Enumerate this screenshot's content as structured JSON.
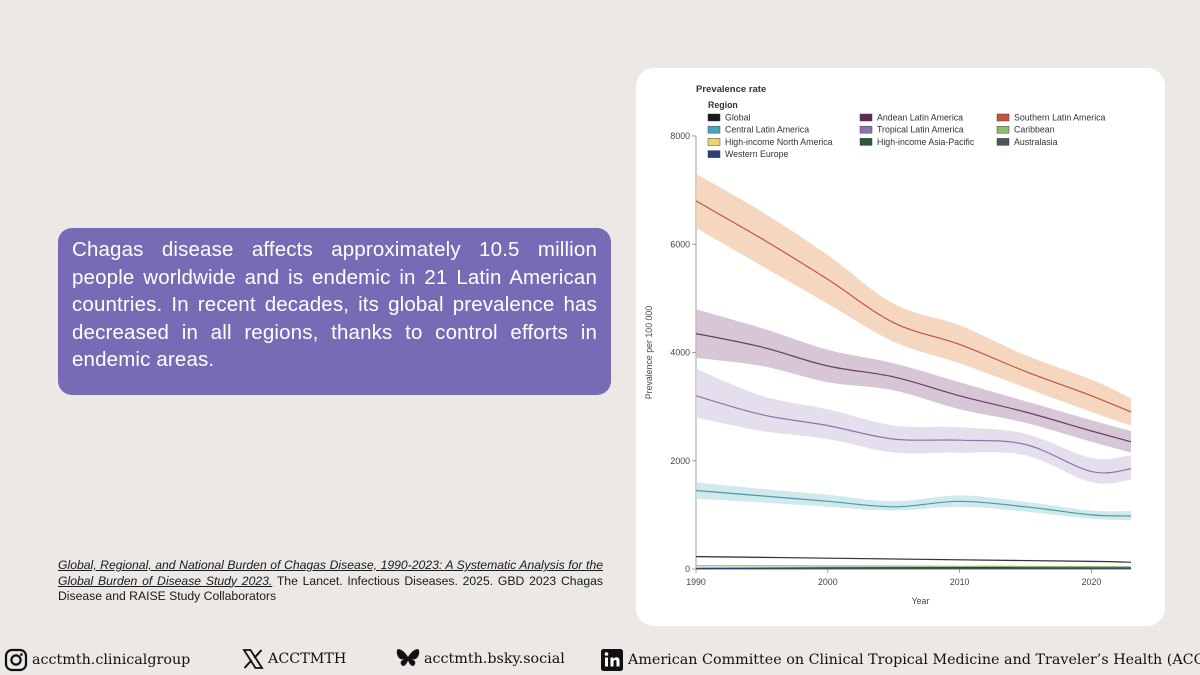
{
  "info": {
    "text": "Chagas disease affects approximately 10.5 million people worldwide and is endemic in 21 Latin American countries. In recent decades, its global prevalence has decreased in all regions, thanks to control efforts in endemic areas."
  },
  "citation": {
    "title": "Global, Regional, and National Burden of Chagas Disease, 1990-2023: A Systematic Analysis for the Global Burden of Disease Study 2023.",
    "rest": " The Lancet. Infectious Diseases. 2025. GBD 2023 Chagas Disease and RAISE Study Collaborators"
  },
  "footer": {
    "instagram": "acctmth.clinicalgroup",
    "x": "ACCTMTH",
    "bluesky": "acctmth.bsky.social",
    "linkedin": "American Committee  on Clinical Tropical Medicine and Traveler’s Health (ACCTMTH)"
  },
  "chart_data": {
    "type": "line",
    "title": "Prevalence rate",
    "legend_title": "Region",
    "xlabel": "Year",
    "ylabel": "Prevalence per 100 000",
    "xlim": [
      1990,
      2023
    ],
    "ylim": [
      0,
      8000
    ],
    "x_ticks": [
      1990,
      2000,
      2010,
      2020
    ],
    "y_ticks": [
      0,
      2000,
      4000,
      6000,
      8000
    ],
    "legend": [
      {
        "name": "Global",
        "color": "#1a1a1a"
      },
      {
        "name": "Andean Latin America",
        "color": "#5e2a5a"
      },
      {
        "name": "Southern Latin America",
        "color": "#c2573a"
      },
      {
        "name": "Central Latin America",
        "color": "#4aa6b6"
      },
      {
        "name": "Tropical Latin America",
        "color": "#8a74ab"
      },
      {
        "name": "Caribbean",
        "color": "#8cbd6c"
      },
      {
        "name": "High-income North America",
        "color": "#e8d76a"
      },
      {
        "name": "High-income Asia-Pacific",
        "color": "#2a5a3e"
      },
      {
        "name": "Australasia",
        "color": "#4a5a5c"
      },
      {
        "name": "Western Europe",
        "color": "#2c3f7c"
      }
    ],
    "series": [
      {
        "name": "Southern Latin America",
        "line": "#c2573a",
        "band": "#f2c9aa",
        "x": [
          1990,
          1995,
          2000,
          2005,
          2010,
          2015,
          2020,
          2023
        ],
        "y": [
          6800,
          6100,
          5350,
          4550,
          4150,
          3650,
          3200,
          2900
        ],
        "lower": [
          6300,
          5600,
          4900,
          4200,
          3800,
          3350,
          2900,
          2650
        ],
        "upper": [
          7300,
          6600,
          5800,
          4900,
          4500,
          3950,
          3500,
          3150
        ]
      },
      {
        "name": "Andean Latin America",
        "line": "#6b3d68",
        "band": "#c8b3c8",
        "x": [
          1990,
          1995,
          2000,
          2005,
          2010,
          2015,
          2020,
          2023
        ],
        "y": [
          4350,
          4100,
          3750,
          3550,
          3200,
          2900,
          2550,
          2350
        ],
        "lower": [
          3900,
          3750,
          3450,
          3300,
          2950,
          2700,
          2350,
          2150
        ],
        "upper": [
          4800,
          4450,
          4050,
          3800,
          3450,
          3100,
          2750,
          2550
        ]
      },
      {
        "name": "Tropical Latin America",
        "line": "#8a78ad",
        "band": "#dcd3e6",
        "x": [
          1990,
          1995,
          2000,
          2005,
          2010,
          2015,
          2020,
          2023
        ],
        "y": [
          3200,
          2850,
          2650,
          2400,
          2380,
          2300,
          1800,
          1850
        ],
        "lower": [
          2800,
          2550,
          2400,
          2150,
          2150,
          2100,
          1600,
          1650
        ],
        "upper": [
          3700,
          3200,
          2950,
          2650,
          2620,
          2500,
          2050,
          2100
        ]
      },
      {
        "name": "Central Latin America",
        "line": "#4a9aa6",
        "band": "#bfe2e6",
        "x": [
          1990,
          1995,
          2000,
          2005,
          2010,
          2015,
          2020,
          2023
        ],
        "y": [
          1450,
          1350,
          1250,
          1150,
          1250,
          1150,
          1000,
          980
        ],
        "lower": [
          1300,
          1230,
          1150,
          1080,
          1150,
          1060,
          930,
          900
        ],
        "upper": [
          1600,
          1480,
          1370,
          1250,
          1360,
          1240,
          1080,
          1070
        ]
      },
      {
        "name": "Global",
        "line": "#333333",
        "band": "#dddddd",
        "x": [
          1990,
          2000,
          2010,
          2020,
          2023
        ],
        "y": [
          230,
          200,
          170,
          140,
          125
        ],
        "lower": [
          210,
          185,
          155,
          125,
          115
        ],
        "upper": [
          250,
          215,
          185,
          155,
          140
        ]
      },
      {
        "name": "Caribbean",
        "line": "#8cbd6c",
        "band": "#d7ebc9",
        "x": [
          1990,
          2000,
          2010,
          2020,
          2023
        ],
        "y": [
          60,
          55,
          50,
          45,
          40
        ],
        "lower": [
          50,
          45,
          42,
          38,
          34
        ],
        "upper": [
          70,
          65,
          58,
          52,
          46
        ]
      },
      {
        "name": "High-income North America",
        "line": "#e8d76a",
        "band": "#f6eebd",
        "x": [
          1990,
          2000,
          2010,
          2020,
          2023
        ],
        "y": [
          25,
          25,
          25,
          22,
          22
        ],
        "lower": [
          20,
          20,
          20,
          18,
          18
        ],
        "upper": [
          30,
          30,
          30,
          26,
          26
        ]
      },
      {
        "name": "High-income Asia-Pacific",
        "line": "#2a5a3e",
        "band": "#c5d6cc",
        "x": [
          1990,
          2000,
          2010,
          2020,
          2023
        ],
        "y": [
          5,
          5,
          5,
          5,
          5
        ],
        "lower": [
          3,
          3,
          3,
          3,
          3
        ],
        "upper": [
          7,
          7,
          7,
          7,
          7
        ]
      },
      {
        "name": "Australasia",
        "line": "#4a5a5c",
        "band": "#c9cfd0",
        "x": [
          1990,
          2000,
          2010,
          2020,
          2023
        ],
        "y": [
          8,
          8,
          8,
          8,
          8
        ],
        "lower": [
          5,
          5,
          5,
          5,
          5
        ],
        "upper": [
          11,
          11,
          11,
          11,
          11
        ]
      },
      {
        "name": "Western Europe",
        "line": "#2c3f7c",
        "band": "#c3c9de",
        "x": [
          1990,
          2000,
          2010,
          2020,
          2023
        ],
        "y": [
          10,
          20,
          25,
          22,
          20
        ],
        "lower": [
          8,
          16,
          20,
          18,
          16
        ],
        "upper": [
          12,
          24,
          30,
          26,
          24
        ]
      }
    ]
  }
}
